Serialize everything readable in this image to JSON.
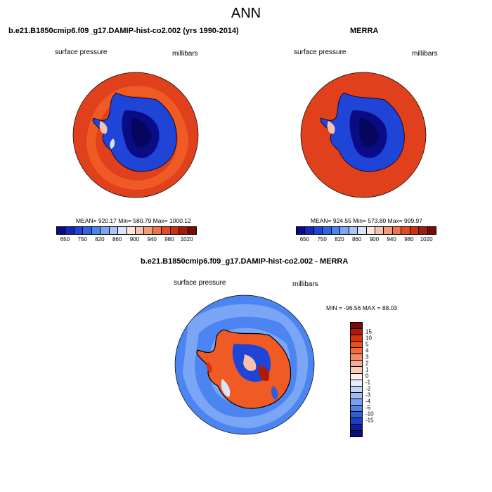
{
  "title": "ANN",
  "panels": {
    "model": {
      "title": "b.e21.B1850cmip6.f09_g17.DAMIP-hist-co2.002 (yrs 1990-2014)",
      "left_label": "surface pressure",
      "right_label": "millibars",
      "stats": "MEAN= 920.17  Min= 580.79  Max= 1000.12"
    },
    "obs": {
      "title": "MERRA",
      "left_label": "surface pressure",
      "right_label": "millibars",
      "stats": "MEAN= 924.55  Min= 573.80  Max= 999.97"
    },
    "diff": {
      "title": "b.e21.B1850cmip6.f09_g17.DAMIP-hist-co2.002 - MERRA",
      "left_label": "surface pressure",
      "right_label": "millibars",
      "stats": "MIN = -96.56 MAX =  88.03"
    }
  },
  "colorbar_abs": {
    "colors": [
      "#0b0b86",
      "#1626b8",
      "#1f44d8",
      "#2f63ea",
      "#4c85f2",
      "#7aa6f5",
      "#a9c6f7",
      "#d9e6fa",
      "#fbe6dc",
      "#f7c2ad",
      "#f39b7d",
      "#ee744f",
      "#e54a25",
      "#d1300f",
      "#a51a08",
      "#7a0a04"
    ],
    "ticks": [
      "650",
      "750",
      "820",
      "860",
      "900",
      "940",
      "980",
      "1020"
    ]
  },
  "colorbar_diff": {
    "colors": [
      "#7a0a04",
      "#b11a06",
      "#d8310c",
      "#ea4c1e",
      "#f06a3e",
      "#f38c66",
      "#f5ad8f",
      "#f8cdb8",
      "#fdeee6",
      "#e6eefb",
      "#c4d5f6",
      "#9fbcf2",
      "#7aa0ee",
      "#5480e8",
      "#2f5ed9",
      "#1b3ec5",
      "#0d1fa0",
      "#060e7a"
    ],
    "ticks": [
      "15",
      "10",
      "5",
      "4",
      "3",
      "2",
      "1",
      "0",
      "-1",
      "-2",
      "-3",
      "-4",
      "-5",
      "-10",
      "-15"
    ]
  }
}
